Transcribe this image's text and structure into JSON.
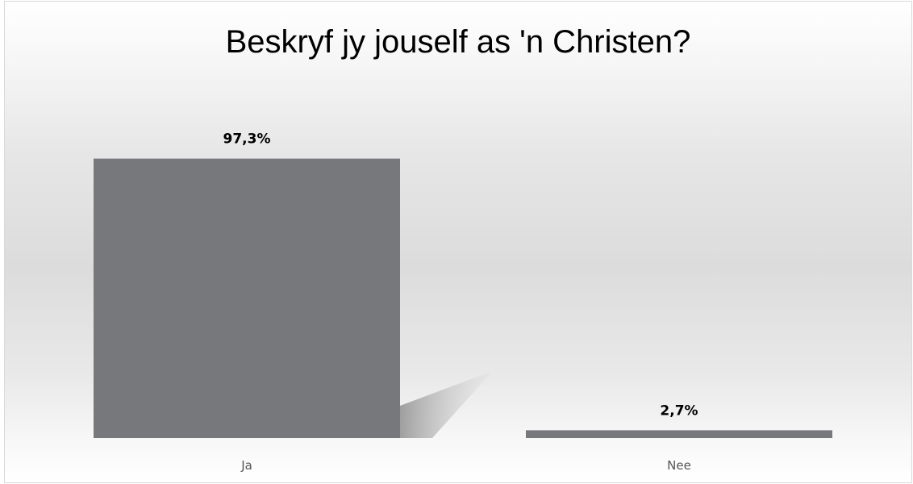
{
  "chart_data": {
    "type": "bar",
    "title": "Beskryf jy jouself as 'n Christen?",
    "categories": [
      "Ja",
      "Nee"
    ],
    "values": [
      97.3,
      2.7
    ],
    "data_labels": [
      "97,3%",
      "2,7%"
    ],
    "xlabel": "",
    "ylabel": "",
    "ylim": [
      0,
      100
    ],
    "grid": false,
    "legend": "none",
    "bar_color": "#77787b",
    "shadow_color": "#a6a6a6"
  }
}
